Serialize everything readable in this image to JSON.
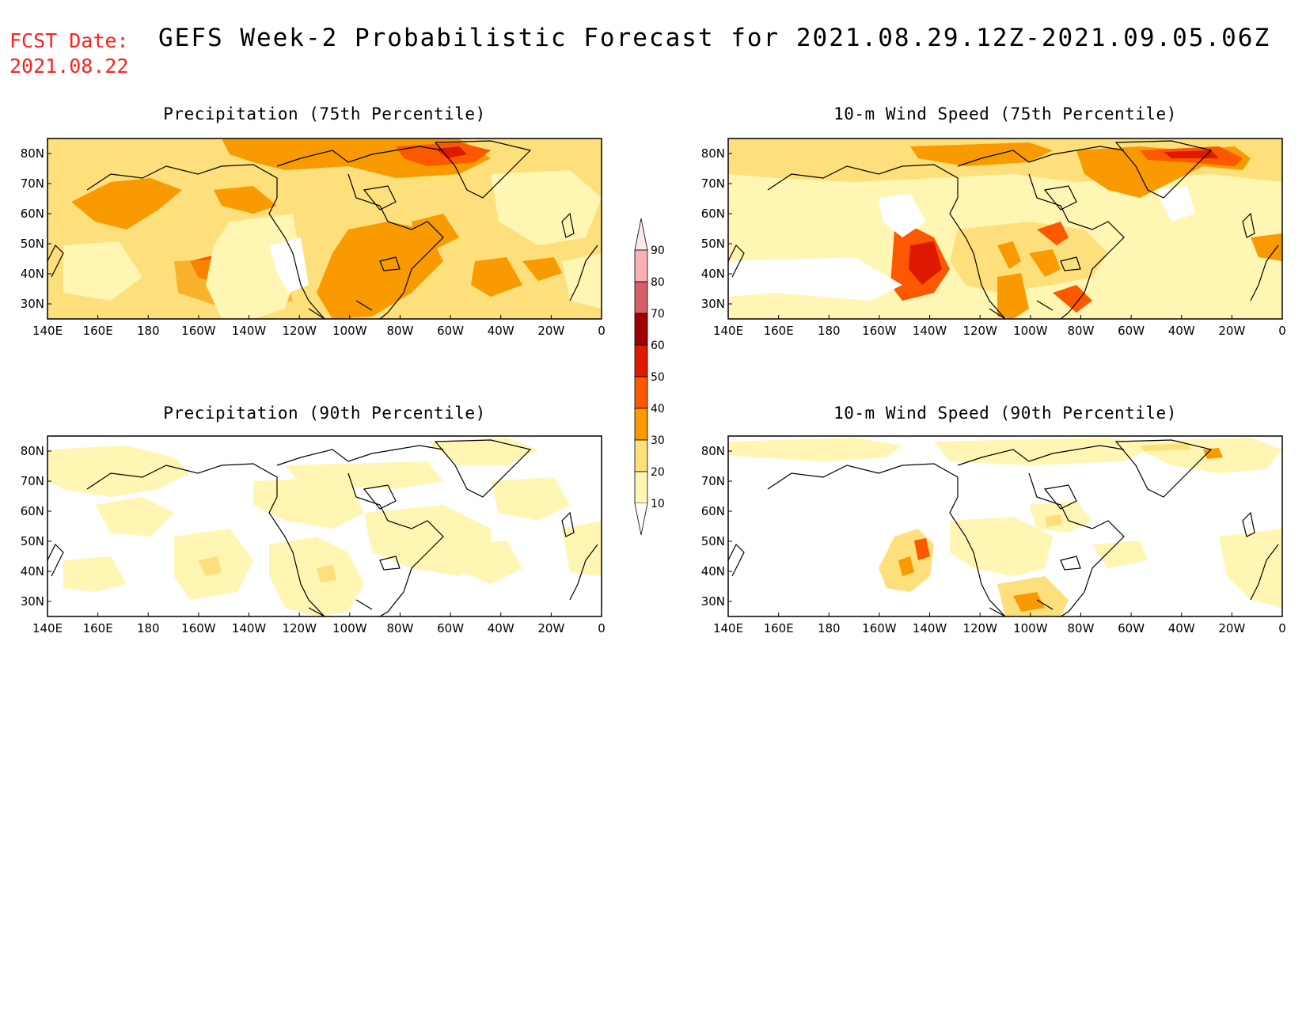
{
  "header": {
    "fcst_date_label": "FCST Date:",
    "fcst_date_value": "2021.08.22",
    "title": "GEFS Week-2 Probabilistic Forecast for 2021.08.29.12Z-2021.09.05.06Z"
  },
  "panels": [
    {
      "id": "precip-75",
      "title": "Precipitation (75th Percentile)"
    },
    {
      "id": "wind-75",
      "title": "10-m Wind Speed (75th Percentile)"
    },
    {
      "id": "precip-90",
      "title": "Precipitation (90th Percentile)"
    },
    {
      "id": "wind-90",
      "title": "10-m Wind Speed (90th Percentile)"
    }
  ],
  "axes": {
    "lon_labels": [
      "140E",
      "160E",
      "180",
      "160W",
      "140W",
      "120W",
      "100W",
      "80W",
      "60W",
      "40W",
      "20W",
      "0"
    ],
    "lat_labels": [
      "80N",
      "70N",
      "60N",
      "50N",
      "40N",
      "30N"
    ]
  },
  "colorbar": {
    "levels": [
      "90",
      "80",
      "70",
      "60",
      "50",
      "40",
      "30",
      "20",
      "10"
    ],
    "colors": [
      "#f7b1b5",
      "#d66068",
      "#a00000",
      "#dd1a00",
      "#fb5800",
      "#f89a00",
      "#fde07c",
      "#fff6b3"
    ]
  },
  "colors": {
    "title_red": "#ff2020",
    "very_light": "#fff6b3",
    "light": "#fde07c",
    "orange": "#f89a00",
    "dark_orange": "#fb5800",
    "red": "#dd1a00"
  }
}
